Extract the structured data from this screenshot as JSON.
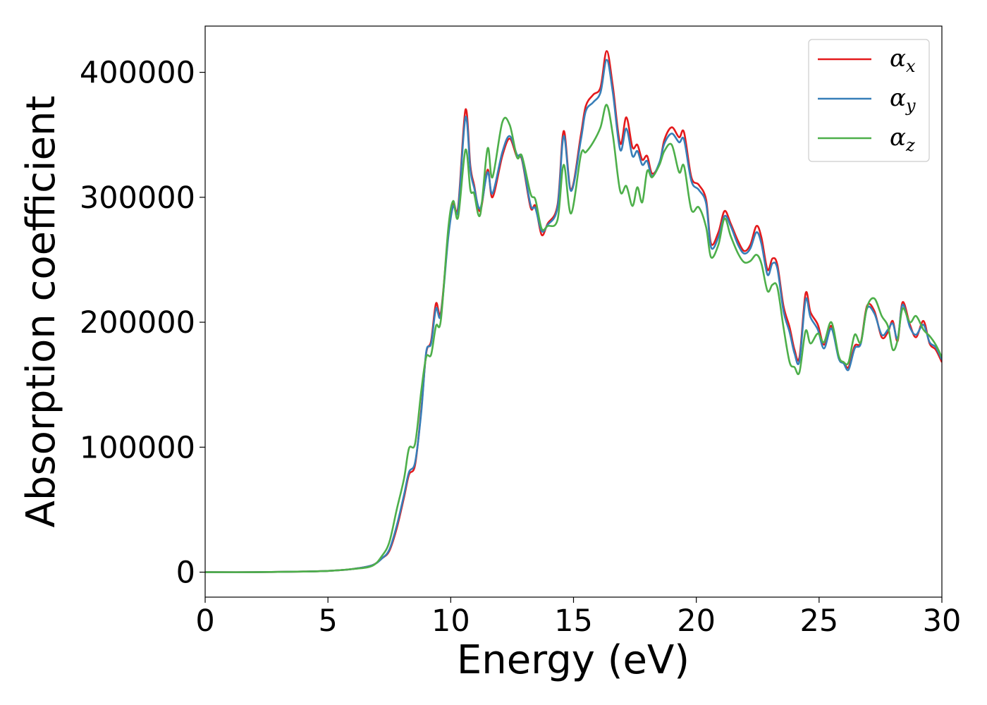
{
  "chart_data": {
    "type": "line",
    "xlabel": "Energy (eV)",
    "ylabel": "Absorption coefficient",
    "xlim": [
      0,
      30
    ],
    "ylim": [
      -20000,
      437000
    ],
    "xticks": [
      0,
      5,
      10,
      15,
      20,
      25,
      30
    ],
    "xtick_labels": [
      "0",
      "5",
      "10",
      "15",
      "20",
      "25",
      "30"
    ],
    "yticks": [
      0,
      100000,
      200000,
      300000,
      400000
    ],
    "ytick_labels": [
      "0",
      "100000",
      "200000",
      "300000",
      "400000"
    ],
    "grid": false,
    "legend_position": "top-right",
    "series": [
      {
        "name": "α",
        "subscript": "x",
        "color": "#e41a1c",
        "points": [
          [
            0,
            0
          ],
          [
            2,
            0
          ],
          [
            4,
            500
          ],
          [
            5,
            1000
          ],
          [
            6,
            2500
          ],
          [
            6.8,
            5500
          ],
          [
            7.2,
            11000
          ],
          [
            7.5,
            17000
          ],
          [
            7.8,
            35000
          ],
          [
            8.1,
            60000
          ],
          [
            8.3,
            78000
          ],
          [
            8.55,
            86000
          ],
          [
            8.8,
            130000
          ],
          [
            9.0,
            175000
          ],
          [
            9.2,
            185000
          ],
          [
            9.4,
            215000
          ],
          [
            9.6,
            208000
          ],
          [
            9.9,
            270000
          ],
          [
            10.1,
            295000
          ],
          [
            10.3,
            292000
          ],
          [
            10.6,
            370000
          ],
          [
            10.8,
            325000
          ],
          [
            10.95,
            310000
          ],
          [
            11.2,
            289000
          ],
          [
            11.5,
            322000
          ],
          [
            11.7,
            300000
          ],
          [
            12.1,
            333000
          ],
          [
            12.4,
            347000
          ],
          [
            12.7,
            332000
          ],
          [
            12.9,
            330000
          ],
          [
            13.25,
            292000
          ],
          [
            13.45,
            293000
          ],
          [
            13.7,
            270000
          ],
          [
            13.95,
            279000
          ],
          [
            14.35,
            294000
          ],
          [
            14.6,
            353000
          ],
          [
            14.9,
            306000
          ],
          [
            15.3,
            350000
          ],
          [
            15.5,
            373000
          ],
          [
            15.8,
            382000
          ],
          [
            16.1,
            388000
          ],
          [
            16.35,
            417000
          ],
          [
            16.6,
            389000
          ],
          [
            16.9,
            343000
          ],
          [
            17.15,
            364000
          ],
          [
            17.4,
            340000
          ],
          [
            17.6,
            342000
          ],
          [
            17.8,
            330000
          ],
          [
            18.0,
            333000
          ],
          [
            18.2,
            319000
          ],
          [
            18.5,
            327000
          ],
          [
            18.7,
            346000
          ],
          [
            19.0,
            356000
          ],
          [
            19.3,
            348000
          ],
          [
            19.5,
            352000
          ],
          [
            19.8,
            316000
          ],
          [
            20.1,
            310000
          ],
          [
            20.4,
            298000
          ],
          [
            20.6,
            263000
          ],
          [
            20.9,
            272000
          ],
          [
            21.15,
            289000
          ],
          [
            21.4,
            279000
          ],
          [
            21.7,
            265000
          ],
          [
            21.95,
            257000
          ],
          [
            22.2,
            262000
          ],
          [
            22.45,
            277000
          ],
          [
            22.65,
            268000
          ],
          [
            22.9,
            242000
          ],
          [
            23.1,
            251000
          ],
          [
            23.3,
            246000
          ],
          [
            23.55,
            213000
          ],
          [
            23.8,
            196000
          ],
          [
            24.0,
            178000
          ],
          [
            24.2,
            172000
          ],
          [
            24.45,
            223000
          ],
          [
            24.65,
            208000
          ],
          [
            24.95,
            198000
          ],
          [
            25.2,
            182000
          ],
          [
            25.5,
            197000
          ],
          [
            25.8,
            172000
          ],
          [
            26.0,
            168000
          ],
          [
            26.2,
            164000
          ],
          [
            26.45,
            181000
          ],
          [
            26.7,
            184000
          ],
          [
            26.95,
            213000
          ],
          [
            27.25,
            209000
          ],
          [
            27.55,
            188000
          ],
          [
            27.8,
            192000
          ],
          [
            28.0,
            201000
          ],
          [
            28.2,
            185000
          ],
          [
            28.4,
            216000
          ],
          [
            28.7,
            198000
          ],
          [
            28.95,
            188000
          ],
          [
            29.25,
            201000
          ],
          [
            29.5,
            183000
          ],
          [
            29.75,
            178000
          ],
          [
            30.0,
            168000
          ]
        ]
      },
      {
        "name": "α",
        "subscript": "y",
        "color": "#377eb8",
        "points": [
          [
            0,
            0
          ],
          [
            2,
            0
          ],
          [
            4,
            500
          ],
          [
            5,
            1000
          ],
          [
            6,
            2500
          ],
          [
            6.8,
            5500
          ],
          [
            7.2,
            11000
          ],
          [
            7.5,
            18000
          ],
          [
            7.8,
            37000
          ],
          [
            8.1,
            62000
          ],
          [
            8.3,
            80000
          ],
          [
            8.55,
            88000
          ],
          [
            8.8,
            128000
          ],
          [
            9.0,
            176000
          ],
          [
            9.2,
            183000
          ],
          [
            9.4,
            211000
          ],
          [
            9.6,
            206000
          ],
          [
            9.9,
            268000
          ],
          [
            10.1,
            293000
          ],
          [
            10.3,
            290000
          ],
          [
            10.6,
            364000
          ],
          [
            10.8,
            322000
          ],
          [
            10.95,
            308000
          ],
          [
            11.2,
            291000
          ],
          [
            11.5,
            320000
          ],
          [
            11.7,
            303000
          ],
          [
            12.1,
            336000
          ],
          [
            12.4,
            349000
          ],
          [
            12.7,
            334000
          ],
          [
            12.9,
            331000
          ],
          [
            13.25,
            294000
          ],
          [
            13.45,
            291000
          ],
          [
            13.7,
            273000
          ],
          [
            13.95,
            278000
          ],
          [
            14.35,
            292000
          ],
          [
            14.6,
            349000
          ],
          [
            14.9,
            305000
          ],
          [
            15.3,
            346000
          ],
          [
            15.5,
            369000
          ],
          [
            15.8,
            376000
          ],
          [
            16.1,
            384000
          ],
          [
            16.35,
            410000
          ],
          [
            16.6,
            384000
          ],
          [
            16.9,
            338000
          ],
          [
            17.15,
            355000
          ],
          [
            17.4,
            333000
          ],
          [
            17.6,
            337000
          ],
          [
            17.8,
            326000
          ],
          [
            18.0,
            329000
          ],
          [
            18.2,
            317000
          ],
          [
            18.5,
            328000
          ],
          [
            18.7,
            343000
          ],
          [
            19.0,
            351000
          ],
          [
            19.3,
            344000
          ],
          [
            19.5,
            346000
          ],
          [
            19.8,
            313000
          ],
          [
            20.1,
            306000
          ],
          [
            20.4,
            295000
          ],
          [
            20.6,
            260000
          ],
          [
            20.9,
            268000
          ],
          [
            21.15,
            285000
          ],
          [
            21.4,
            277000
          ],
          [
            21.7,
            262000
          ],
          [
            21.95,
            255000
          ],
          [
            22.2,
            259000
          ],
          [
            22.45,
            272000
          ],
          [
            22.65,
            263000
          ],
          [
            22.9,
            238000
          ],
          [
            23.1,
            247000
          ],
          [
            23.3,
            243000
          ],
          [
            23.55,
            209000
          ],
          [
            23.8,
            192000
          ],
          [
            24.0,
            175000
          ],
          [
            24.2,
            169000
          ],
          [
            24.45,
            218000
          ],
          [
            24.65,
            204000
          ],
          [
            24.95,
            194000
          ],
          [
            25.2,
            179000
          ],
          [
            25.5,
            195000
          ],
          [
            25.8,
            171000
          ],
          [
            26.0,
            167000
          ],
          [
            26.2,
            162000
          ],
          [
            26.45,
            179000
          ],
          [
            26.7,
            183000
          ],
          [
            26.95,
            211000
          ],
          [
            27.25,
            207000
          ],
          [
            27.55,
            190000
          ],
          [
            27.8,
            194000
          ],
          [
            28.0,
            199000
          ],
          [
            28.2,
            187000
          ],
          [
            28.4,
            214000
          ],
          [
            28.7,
            196000
          ],
          [
            28.95,
            190000
          ],
          [
            29.25,
            198000
          ],
          [
            29.5,
            184000
          ],
          [
            29.75,
            180000
          ],
          [
            30.0,
            170000
          ]
        ]
      },
      {
        "name": "α",
        "subscript": "z",
        "color": "#4daf4a",
        "points": [
          [
            0,
            0
          ],
          [
            2,
            0
          ],
          [
            4,
            500
          ],
          [
            5,
            1000
          ],
          [
            6,
            2500
          ],
          [
            6.8,
            5000
          ],
          [
            7.2,
            13000
          ],
          [
            7.5,
            24000
          ],
          [
            7.8,
            50000
          ],
          [
            8.1,
            75000
          ],
          [
            8.3,
            99000
          ],
          [
            8.55,
            103000
          ],
          [
            8.8,
            145000
          ],
          [
            9.0,
            172000
          ],
          [
            9.2,
            174000
          ],
          [
            9.4,
            197000
          ],
          [
            9.6,
            202000
          ],
          [
            9.9,
            275000
          ],
          [
            10.1,
            297000
          ],
          [
            10.3,
            284000
          ],
          [
            10.6,
            338000
          ],
          [
            10.8,
            306000
          ],
          [
            10.95,
            303000
          ],
          [
            11.2,
            286000
          ],
          [
            11.5,
            339000
          ],
          [
            11.7,
            316000
          ],
          [
            12.1,
            360000
          ],
          [
            12.4,
            358000
          ],
          [
            12.7,
            332000
          ],
          [
            12.9,
            333000
          ],
          [
            13.25,
            303000
          ],
          [
            13.45,
            298000
          ],
          [
            13.7,
            275000
          ],
          [
            13.95,
            277000
          ],
          [
            14.35,
            282000
          ],
          [
            14.6,
            326000
          ],
          [
            14.9,
            287000
          ],
          [
            15.3,
            334000
          ],
          [
            15.5,
            336000
          ],
          [
            15.8,
            344000
          ],
          [
            16.1,
            356000
          ],
          [
            16.35,
            374000
          ],
          [
            16.6,
            350000
          ],
          [
            16.9,
            305000
          ],
          [
            17.15,
            309000
          ],
          [
            17.4,
            293000
          ],
          [
            17.6,
            308000
          ],
          [
            17.8,
            296000
          ],
          [
            18.0,
            321000
          ],
          [
            18.2,
            316000
          ],
          [
            18.5,
            326000
          ],
          [
            18.7,
            337000
          ],
          [
            19.0,
            342000
          ],
          [
            19.3,
            320000
          ],
          [
            19.5,
            325000
          ],
          [
            19.8,
            290000
          ],
          [
            20.1,
            292000
          ],
          [
            20.4,
            276000
          ],
          [
            20.6,
            252000
          ],
          [
            20.9,
            262000
          ],
          [
            21.15,
            283000
          ],
          [
            21.4,
            269000
          ],
          [
            21.7,
            255000
          ],
          [
            21.95,
            248000
          ],
          [
            22.2,
            249000
          ],
          [
            22.45,
            254000
          ],
          [
            22.65,
            247000
          ],
          [
            22.9,
            225000
          ],
          [
            23.1,
            230000
          ],
          [
            23.3,
            228000
          ],
          [
            23.55,
            196000
          ],
          [
            23.8,
            168000
          ],
          [
            24.0,
            164000
          ],
          [
            24.2,
            160000
          ],
          [
            24.45,
            193000
          ],
          [
            24.65,
            183000
          ],
          [
            24.95,
            191000
          ],
          [
            25.2,
            184000
          ],
          [
            25.5,
            200000
          ],
          [
            25.8,
            173000
          ],
          [
            26.0,
            168000
          ],
          [
            26.2,
            168000
          ],
          [
            26.45,
            190000
          ],
          [
            26.7,
            184000
          ],
          [
            26.95,
            212000
          ],
          [
            27.25,
            219000
          ],
          [
            27.55,
            205000
          ],
          [
            27.8,
            197000
          ],
          [
            28.0,
            178000
          ],
          [
            28.2,
            186000
          ],
          [
            28.4,
            211000
          ],
          [
            28.7,
            200000
          ],
          [
            28.95,
            205000
          ],
          [
            29.25,
            194000
          ],
          [
            29.5,
            189000
          ],
          [
            29.75,
            182000
          ],
          [
            30.0,
            172000
          ]
        ]
      }
    ]
  }
}
